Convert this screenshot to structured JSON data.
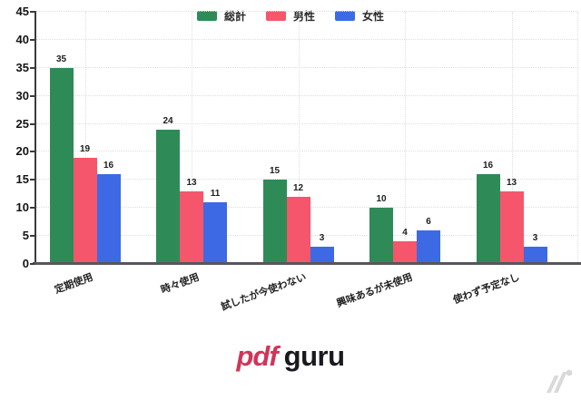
{
  "chart_data": {
    "type": "bar",
    "title": "",
    "xlabel": "",
    "ylabel": "",
    "categories": [
      "定期使用",
      "時々使用",
      "試したが今使わない",
      "興味あるが未使用",
      "使わず予定なし"
    ],
    "series": [
      {
        "name": "総計",
        "color": "#2e8b57",
        "values": [
          35,
          24,
          15,
          10,
          16
        ]
      },
      {
        "name": "男性",
        "color": "#f5566b",
        "values": [
          19,
          13,
          12,
          4,
          13
        ]
      },
      {
        "name": "女性",
        "color": "#3d6ae4",
        "values": [
          16,
          11,
          3,
          6,
          3
        ]
      }
    ],
    "ylim": [
      0,
      45
    ],
    "ytick_step": 5,
    "grid": true,
    "legend_position": "top-center"
  },
  "footer": {
    "logo_pdf": "pdf",
    "logo_guru": "guru",
    "watermark_color": "#d9d9d9"
  }
}
